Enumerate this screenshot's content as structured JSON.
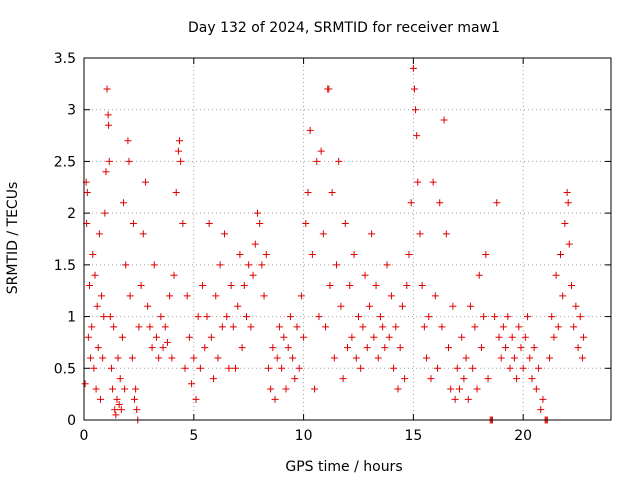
{
  "chart_data": {
    "type": "scatter",
    "title": "Day 132 of 2024, SRMTID for receiver maw1",
    "xlabel": "GPS time / hours",
    "ylabel": "SRMTID / TECUs",
    "xlim": [
      0,
      24
    ],
    "ylim": [
      0,
      3.5
    ],
    "x_ticks": [
      "0",
      "5",
      "10",
      "15",
      "20"
    ],
    "y_ticks": [
      "0",
      "0.5",
      "1",
      "1.5",
      "2",
      "2.5",
      "3",
      "3.5"
    ],
    "grid": true,
    "marker": "+",
    "color": "#e00000",
    "series": [
      {
        "name": "SRMTID",
        "points": [
          [
            0.05,
            0.35
          ],
          [
            0.1,
            2.3
          ],
          [
            0.12,
            1.9
          ],
          [
            0.15,
            2.2
          ],
          [
            0.2,
            0.8
          ],
          [
            0.25,
            1.3
          ],
          [
            0.3,
            0.6
          ],
          [
            0.35,
            0.9
          ],
          [
            0.4,
            1.6
          ],
          [
            0.45,
            0.5
          ],
          [
            0.5,
            1.4
          ],
          [
            0.55,
            0.3
          ],
          [
            0.6,
            1.1
          ],
          [
            0.65,
            0.7
          ],
          [
            0.7,
            1.8
          ],
          [
            0.75,
            0.2
          ],
          [
            0.8,
            1.2
          ],
          [
            0.85,
            0.6
          ],
          [
            0.9,
            1.0
          ],
          [
            0.95,
            2.0
          ],
          [
            1.0,
            2.4
          ],
          [
            1.05,
            3.2
          ],
          [
            1.1,
            2.95
          ],
          [
            1.12,
            2.85
          ],
          [
            1.15,
            2.5
          ],
          [
            1.2,
            1.0
          ],
          [
            1.25,
            0.5
          ],
          [
            1.3,
            0.3
          ],
          [
            1.35,
            0.9
          ],
          [
            1.4,
            0.1
          ],
          [
            1.45,
            0.05
          ],
          [
            1.5,
            0.2
          ],
          [
            1.55,
            0.6
          ],
          [
            1.6,
            0.15
          ],
          [
            1.65,
            0.4
          ],
          [
            1.7,
            0.1
          ],
          [
            1.75,
            0.8
          ],
          [
            1.8,
            2.1
          ],
          [
            1.85,
            0.3
          ],
          [
            1.9,
            1.5
          ],
          [
            2.0,
            2.7
          ],
          [
            2.05,
            2.5
          ],
          [
            2.1,
            1.2
          ],
          [
            2.2,
            0.6
          ],
          [
            2.25,
            1.9
          ],
          [
            2.3,
            0.2
          ],
          [
            2.35,
            0.3
          ],
          [
            2.4,
            0.1
          ],
          [
            2.45,
            0.0
          ],
          [
            2.5,
            0.9
          ],
          [
            2.6,
            1.3
          ],
          [
            2.7,
            1.8
          ],
          [
            2.8,
            2.3
          ],
          [
            2.9,
            1.1
          ],
          [
            3.0,
            0.9
          ],
          [
            3.1,
            0.7
          ],
          [
            3.2,
            1.5
          ],
          [
            3.3,
            0.8
          ],
          [
            3.4,
            0.6
          ],
          [
            3.5,
            1.0
          ],
          [
            3.6,
            0.7
          ],
          [
            3.7,
            0.9
          ],
          [
            3.8,
            0.75
          ],
          [
            3.9,
            1.2
          ],
          [
            4.0,
            0.6
          ],
          [
            4.1,
            1.4
          ],
          [
            4.2,
            2.2
          ],
          [
            4.3,
            2.6
          ],
          [
            4.35,
            2.7
          ],
          [
            4.4,
            2.5
          ],
          [
            4.5,
            1.9
          ],
          [
            4.6,
            0.5
          ],
          [
            4.7,
            1.2
          ],
          [
            4.8,
            0.8
          ],
          [
            4.9,
            0.35
          ],
          [
            5.0,
            0.6
          ],
          [
            5.1,
            0.2
          ],
          [
            5.2,
            1.0
          ],
          [
            5.3,
            0.5
          ],
          [
            5.4,
            1.3
          ],
          [
            5.5,
            0.7
          ],
          [
            5.6,
            1.0
          ],
          [
            5.7,
            1.9
          ],
          [
            5.8,
            0.8
          ],
          [
            5.9,
            0.4
          ],
          [
            6.0,
            1.2
          ],
          [
            6.1,
            0.6
          ],
          [
            6.2,
            1.5
          ],
          [
            6.3,
            0.9
          ],
          [
            6.4,
            1.8
          ],
          [
            6.5,
            1.0
          ],
          [
            6.6,
            0.5
          ],
          [
            6.7,
            1.3
          ],
          [
            6.8,
            0.9
          ],
          [
            6.9,
            0.5
          ],
          [
            7.0,
            1.1
          ],
          [
            7.1,
            1.6
          ],
          [
            7.2,
            0.7
          ],
          [
            7.3,
            1.3
          ],
          [
            7.4,
            1.0
          ],
          [
            7.5,
            1.5
          ],
          [
            7.6,
            0.9
          ],
          [
            7.7,
            1.4
          ],
          [
            7.8,
            1.7
          ],
          [
            7.9,
            2.0
          ],
          [
            8.0,
            1.9
          ],
          [
            8.1,
            1.5
          ],
          [
            8.2,
            1.2
          ],
          [
            8.3,
            1.6
          ],
          [
            8.4,
            0.5
          ],
          [
            8.5,
            0.3
          ],
          [
            8.6,
            0.7
          ],
          [
            8.7,
            0.2
          ],
          [
            8.8,
            0.6
          ],
          [
            8.9,
            0.9
          ],
          [
            9.0,
            0.5
          ],
          [
            9.1,
            0.8
          ],
          [
            9.2,
            0.3
          ],
          [
            9.3,
            0.7
          ],
          [
            9.4,
            1.0
          ],
          [
            9.5,
            0.6
          ],
          [
            9.6,
            0.4
          ],
          [
            9.7,
            0.9
          ],
          [
            9.8,
            0.5
          ],
          [
            9.9,
            1.2
          ],
          [
            10.0,
            0.8
          ],
          [
            10.1,
            1.9
          ],
          [
            10.2,
            2.2
          ],
          [
            10.3,
            2.8
          ],
          [
            10.4,
            1.6
          ],
          [
            10.5,
            0.3
          ],
          [
            10.6,
            2.5
          ],
          [
            10.7,
            1.0
          ],
          [
            10.8,
            2.6
          ],
          [
            10.9,
            1.8
          ],
          [
            11.0,
            0.9
          ],
          [
            11.1,
            3.2
          ],
          [
            11.15,
            3.2
          ],
          [
            11.2,
            1.3
          ],
          [
            11.3,
            2.2
          ],
          [
            11.4,
            0.6
          ],
          [
            11.5,
            1.5
          ],
          [
            11.6,
            2.5
          ],
          [
            11.7,
            1.1
          ],
          [
            11.8,
            0.4
          ],
          [
            11.9,
            1.9
          ],
          [
            12.0,
            0.7
          ],
          [
            12.1,
            1.3
          ],
          [
            12.2,
            0.8
          ],
          [
            12.3,
            1.6
          ],
          [
            12.4,
            0.6
          ],
          [
            12.5,
            1.0
          ],
          [
            12.6,
            0.5
          ],
          [
            12.7,
            0.9
          ],
          [
            12.8,
            1.4
          ],
          [
            12.9,
            0.7
          ],
          [
            13.0,
            1.1
          ],
          [
            13.1,
            1.8
          ],
          [
            13.2,
            0.8
          ],
          [
            13.3,
            1.3
          ],
          [
            13.4,
            0.6
          ],
          [
            13.5,
            1.0
          ],
          [
            13.6,
            0.9
          ],
          [
            13.7,
            0.7
          ],
          [
            13.8,
            1.5
          ],
          [
            13.9,
            0.8
          ],
          [
            14.0,
            1.2
          ],
          [
            14.1,
            0.5
          ],
          [
            14.2,
            0.9
          ],
          [
            14.3,
            0.3
          ],
          [
            14.4,
            0.7
          ],
          [
            14.5,
            1.1
          ],
          [
            14.6,
            0.4
          ],
          [
            14.7,
            1.3
          ],
          [
            14.8,
            1.6
          ],
          [
            14.9,
            2.1
          ],
          [
            15.0,
            3.4
          ],
          [
            15.05,
            3.2
          ],
          [
            15.1,
            3.0
          ],
          [
            15.15,
            2.75
          ],
          [
            15.2,
            2.3
          ],
          [
            15.3,
            1.8
          ],
          [
            15.4,
            1.3
          ],
          [
            15.5,
            0.9
          ],
          [
            15.6,
            0.6
          ],
          [
            15.7,
            1.0
          ],
          [
            15.8,
            0.4
          ],
          [
            15.9,
            2.3
          ],
          [
            16.0,
            1.2
          ],
          [
            16.1,
            0.5
          ],
          [
            16.2,
            2.1
          ],
          [
            16.3,
            0.9
          ],
          [
            16.4,
            2.9
          ],
          [
            16.5,
            1.8
          ],
          [
            16.6,
            0.7
          ],
          [
            16.7,
            0.3
          ],
          [
            16.8,
            1.1
          ],
          [
            16.9,
            0.2
          ],
          [
            17.0,
            0.5
          ],
          [
            17.1,
            0.3
          ],
          [
            17.2,
            0.8
          ],
          [
            17.3,
            0.4
          ],
          [
            17.4,
            0.6
          ],
          [
            17.5,
            0.2
          ],
          [
            17.6,
            1.1
          ],
          [
            17.7,
            0.5
          ],
          [
            17.8,
            0.9
          ],
          [
            17.9,
            0.3
          ],
          [
            18.0,
            1.4
          ],
          [
            18.1,
            0.7
          ],
          [
            18.2,
            1.0
          ],
          [
            18.3,
            1.6
          ],
          [
            18.4,
            0.4
          ],
          [
            18.5,
            0.0
          ],
          [
            18.55,
            0.0
          ],
          [
            18.6,
            0.0
          ],
          [
            18.7,
            1.0
          ],
          [
            18.8,
            2.1
          ],
          [
            18.9,
            0.8
          ],
          [
            19.0,
            0.6
          ],
          [
            19.1,
            0.9
          ],
          [
            19.2,
            0.7
          ],
          [
            19.3,
            1.0
          ],
          [
            19.4,
            0.5
          ],
          [
            19.5,
            0.8
          ],
          [
            19.6,
            0.6
          ],
          [
            19.7,
            0.4
          ],
          [
            19.8,
            0.9
          ],
          [
            19.9,
            0.7
          ],
          [
            20.0,
            0.5
          ],
          [
            20.1,
            0.8
          ],
          [
            20.2,
            1.0
          ],
          [
            20.3,
            0.6
          ],
          [
            20.4,
            0.4
          ],
          [
            20.5,
            0.7
          ],
          [
            20.6,
            0.3
          ],
          [
            20.7,
            0.5
          ],
          [
            20.8,
            0.1
          ],
          [
            20.9,
            0.2
          ],
          [
            21.0,
            0.0
          ],
          [
            21.05,
            0.0
          ],
          [
            21.1,
            0.0
          ],
          [
            21.2,
            0.6
          ],
          [
            21.3,
            1.0
          ],
          [
            21.4,
            0.8
          ],
          [
            21.5,
            1.4
          ],
          [
            21.6,
            0.9
          ],
          [
            21.7,
            1.6
          ],
          [
            21.8,
            1.2
          ],
          [
            21.9,
            1.9
          ],
          [
            22.0,
            2.2
          ],
          [
            22.05,
            2.1
          ],
          [
            22.1,
            1.7
          ],
          [
            22.2,
            1.3
          ],
          [
            22.3,
            0.9
          ],
          [
            22.4,
            1.1
          ],
          [
            22.5,
            0.7
          ],
          [
            22.6,
            1.0
          ],
          [
            22.7,
            0.6
          ],
          [
            22.75,
            0.8
          ]
        ]
      }
    ]
  }
}
